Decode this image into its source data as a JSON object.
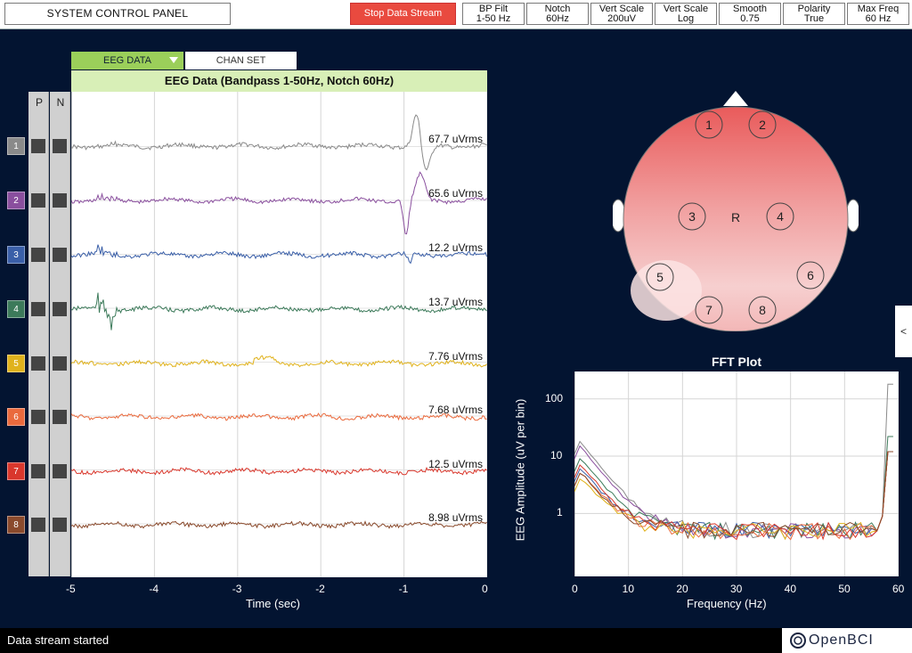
{
  "topbar": {
    "system_control_panel": "SYSTEM CONTROL PANEL",
    "stop_stream": "Stop Data Stream",
    "params": [
      {
        "label": "BP Filt",
        "value": "1-50 Hz"
      },
      {
        "label": "Notch",
        "value": "60Hz"
      },
      {
        "label": "Vert Scale",
        "value": "200uV"
      },
      {
        "label": "Vert Scale",
        "value": "Log"
      },
      {
        "label": "Smooth",
        "value": "0.75"
      },
      {
        "label": "Polarity",
        "value": "True"
      },
      {
        "label": "Max Freq",
        "value": "60 Hz"
      }
    ]
  },
  "eeg": {
    "tab_eeg": "EEG DATA",
    "tab_chan": "CHAN SET",
    "title": "EEG Data (Bandpass 1-50Hz, Notch 60Hz)",
    "col_p": "P",
    "col_n": "N",
    "xlabel": "Time (sec)",
    "xticks": [
      "-5",
      "-4",
      "-3",
      "-2",
      "-1",
      "0"
    ],
    "channels": [
      {
        "num": "1",
        "color": "#8a8a8a",
        "rms": "67.7 uVrms"
      },
      {
        "num": "2",
        "color": "#8a4f9e",
        "rms": "65.6 uVrms"
      },
      {
        "num": "3",
        "color": "#3a5fa8",
        "rms": "12.2 uVrms"
      },
      {
        "num": "4",
        "color": "#3c7a5a",
        "rms": "13.7 uVrms"
      },
      {
        "num": "5",
        "color": "#e0b21c",
        "rms": "7.76 uVrms"
      },
      {
        "num": "6",
        "color": "#ea6a3d",
        "rms": "7.68 uVrms"
      },
      {
        "num": "7",
        "color": "#d9372c",
        "rms": "12.5 uVrms"
      },
      {
        "num": "8",
        "color": "#8a4a2c",
        "rms": "8.98 uVrms"
      }
    ]
  },
  "headplot": {
    "electrodes": [
      "1",
      "2",
      "3",
      "4",
      "5",
      "6",
      "7",
      "8"
    ],
    "ref_label": "R"
  },
  "fft": {
    "title": "FFT Plot",
    "xlabel": "Frequency (Hz)",
    "ylabel": "EEG Amplitude (uV per bin)",
    "xticks": [
      "0",
      "10",
      "20",
      "30",
      "40",
      "50",
      "60"
    ],
    "yticks": [
      "100",
      "10",
      "1"
    ]
  },
  "side_tab": "<",
  "status": "Data stream started",
  "logo": "OpenBCI"
}
